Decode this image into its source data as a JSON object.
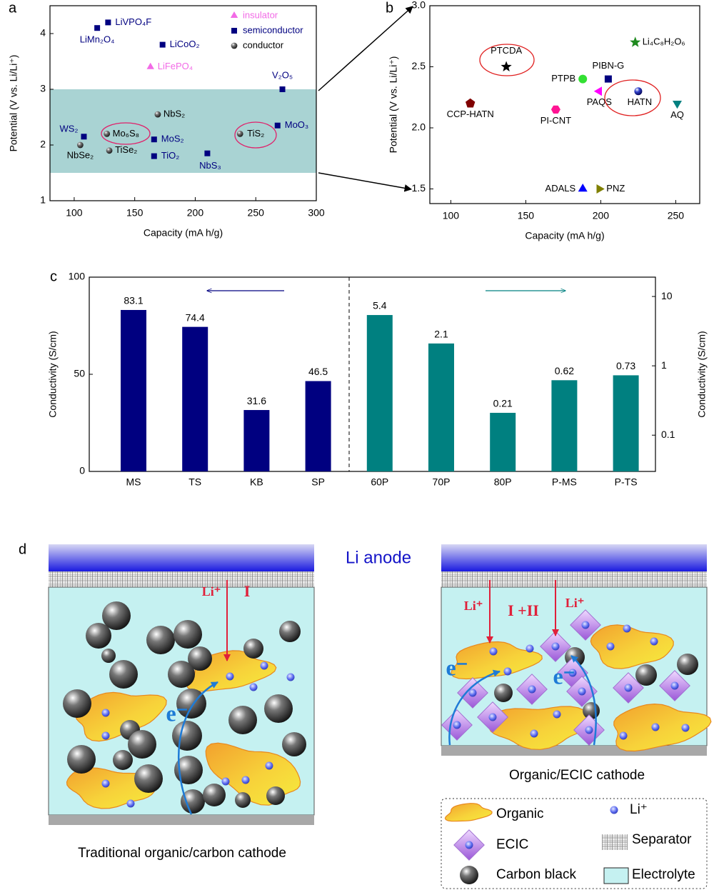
{
  "chart_data": [
    {
      "type": "scatter",
      "panel": "a",
      "xlabel": "Capacity (mA h/g)",
      "ylabel": "Potential (V vs. Li/Li⁺)",
      "xlim": [
        80,
        300
      ],
      "ylim": [
        1,
        4.5
      ],
      "xticks": [
        100,
        150,
        200,
        250,
        300
      ],
      "yticks": [
        1,
        2,
        3,
        4
      ],
      "shaded_range": [
        1.5,
        3.0
      ],
      "shaded_color": "#a9d3d3",
      "legend": "upper right",
      "series": [
        {
          "name": "insulator",
          "color": "#f26be6",
          "marker": "triangle-up",
          "x": [
            163
          ],
          "values": [
            3.4
          ],
          "labels": [
            "LiFePO₄"
          ]
        },
        {
          "name": "semiconductor",
          "color": "#000080",
          "marker": "square",
          "x": [
            128,
            119,
            173,
            272,
            268,
            108,
            166,
            166,
            210
          ],
          "values": [
            4.2,
            4.1,
            3.8,
            3.0,
            2.35,
            2.15,
            2.1,
            1.8,
            1.85
          ],
          "labels": [
            "LiVPO₄F",
            "LiMn₂O₄",
            "LiCoO₂",
            "V₂O₅",
            "MoO₃",
            "WS₂",
            "MoS₂",
            "TiO₂",
            "NbS₃"
          ]
        },
        {
          "name": "conductor",
          "color": "#000000",
          "marker": "sphere",
          "x": [
            169,
            127,
            237,
            105,
            129
          ],
          "values": [
            2.55,
            2.2,
            2.2,
            2.0,
            1.9
          ],
          "labels": [
            "NbS₂",
            "Mo₆S₈",
            "TiS₂",
            "NbSe₂",
            "TiSe₂"
          ]
        }
      ]
    },
    {
      "type": "scatter",
      "panel": "b",
      "xlabel": "Capacity (mA h/g)",
      "ylabel": "Potential (V vs. Li/Li⁺)",
      "xlim": [
        86,
        266
      ],
      "ylim": [
        1.38,
        3.0
      ],
      "xticks": [
        100,
        150,
        200,
        250
      ],
      "yticks": [
        1.5,
        {
          "value": 2,
          "label": "2.0"
        },
        2.5,
        {
          "value": 3,
          "label": "3.0"
        }
      ],
      "points": [
        {
          "label": "PTCDA",
          "x": 137,
          "y": 2.5,
          "color": "#000000",
          "marker": "star"
        },
        {
          "label": "Li₄C₈H₂O₆",
          "x": 223,
          "y": 2.7,
          "color": "#1f8a1f",
          "marker": "star"
        },
        {
          "label": "PTPB",
          "x": 188,
          "y": 2.4,
          "color": "#33e033",
          "marker": "circle"
        },
        {
          "label": "PIBN-G",
          "x": 205,
          "y": 2.4,
          "color": "#000080",
          "marker": "square"
        },
        {
          "label": "PAQS",
          "x": 199,
          "y": 2.3,
          "color": "#ff00ff",
          "marker": "triangle-left"
        },
        {
          "label": "HATN",
          "x": 225,
          "y": 2.3,
          "color": "#000080",
          "marker": "sphere"
        },
        {
          "label": "AQ",
          "x": 251,
          "y": 2.2,
          "color": "#008080",
          "marker": "triangle-down"
        },
        {
          "label": "CCP-HATN",
          "x": 113,
          "y": 2.2,
          "color": "#800000",
          "marker": "pentagon"
        },
        {
          "label": "PI-CNT",
          "x": 170,
          "y": 2.15,
          "color": "#ff1493",
          "marker": "hexagon"
        },
        {
          "label": "ADALS",
          "x": 188,
          "y": 1.5,
          "color": "#0000ff",
          "marker": "triangle-up"
        },
        {
          "label": "PNZ",
          "x": 199,
          "y": 1.5,
          "color": "#808000",
          "marker": "triangle-right"
        }
      ]
    },
    {
      "type": "bar",
      "panel": "c",
      "ylabel": "Conductivity (S/cm)",
      "y2label": "Conductivity (S/cm)",
      "categories": [
        "MS",
        "TS",
        "KB",
        "SP",
        "60P",
        "70P",
        "80P",
        "P-MS",
        "P-TS"
      ],
      "ylim": [
        0,
        100
      ],
      "yticks": [
        0,
        50,
        100
      ],
      "y2lim": [
        0.03,
        19
      ],
      "y2ticks": [
        0.1,
        1,
        10
      ],
      "y2log": true,
      "series": [
        {
          "color": "#000080",
          "values": [
            83.1,
            74.4,
            31.6,
            46.5,
            null,
            null,
            null,
            null,
            null
          ]
        },
        {
          "color": "#008080",
          "axis": "y2",
          "values": [
            null,
            null,
            null,
            null,
            5.4,
            2.1,
            0.21,
            0.62,
            0.73
          ]
        }
      ]
    }
  ],
  "diagram": {
    "panel": "d",
    "anode": "Li anode",
    "left": {
      "ion": "Li⁺",
      "process": "I",
      "electron": "e⁻",
      "caption": "Traditional organic/carbon cathode"
    },
    "right": {
      "ions": [
        "Li⁺",
        "Li⁺"
      ],
      "process": "I +II",
      "electrons": [
        "e⁻",
        "e⁻"
      ],
      "caption": "Organic/ECIC cathode"
    },
    "legend": [
      "Organic",
      "Li⁺",
      "ECIC",
      "Separator",
      "Carbon black",
      "Electrolyte"
    ]
  }
}
